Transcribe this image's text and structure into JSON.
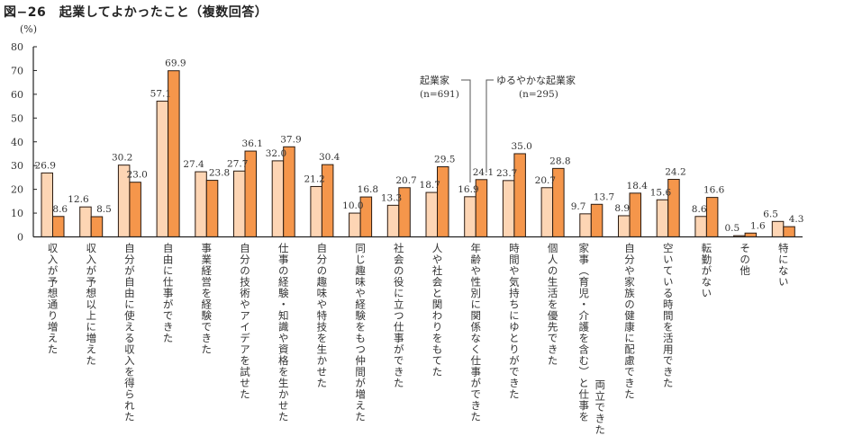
{
  "chart_data": {
    "type": "bar",
    "title": "図−26　起業してよかったこと（複数回答）",
    "ylabel": "(%)",
    "xlabel": "",
    "ylim": [
      0,
      80
    ],
    "yticks": [
      "0",
      "10",
      "20",
      "30",
      "40",
      "50",
      "60",
      "70",
      "80"
    ],
    "grid": false,
    "categories": [
      "収入が予想通り増えた",
      "収入が予想以上に増えた",
      "自分が自由に使える収入を得られた",
      "自由に仕事ができた",
      "事業経営を経験できた",
      "自分の技術やアイデアを試せた",
      "仕事の経験・知識や資格を生かせた",
      "自分の趣味や特技を生かせた",
      "同じ趣味や経験をもつ仲間が増えた",
      "社会の役に立つ仕事ができた",
      "人や社会と関わりをもてた",
      "年齢や性別に関係なく仕事ができた",
      "時間や気持ちにゆとりができた",
      "個人の生活を優先できた",
      "家事（育児・介護を含む）と仕事を両立できた",
      "自分や家族の健康に配慮できた",
      "空いている時間を活用できた",
      "転勤がない",
      "その他",
      "特にない"
    ],
    "category_lines": [
      [
        "収入が予想通り増えた"
      ],
      [
        "収入が予想以上に増えた"
      ],
      [
        "自分が自由に使える収入を得られた"
      ],
      [
        "自由に仕事ができた"
      ],
      [
        "事業経営を経験できた"
      ],
      [
        "自分の技術やアイデアを試せた"
      ],
      [
        "仕事の経験・知識や資格を生かせた"
      ],
      [
        "自分の趣味や特技を生かせた"
      ],
      [
        "同じ趣味や経験をもつ仲間が増えた"
      ],
      [
        "社会の役に立つ仕事ができた"
      ],
      [
        "人や社会と関わりをもてた"
      ],
      [
        "年齢や性別に関係なく仕事ができた"
      ],
      [
        "時間や気持ちにゆとりができた"
      ],
      [
        "個人の生活を優先できた"
      ],
      [
        "家事（育児・介護を含む）と仕事を",
        "両立できた"
      ],
      [
        "自分や家族の健康に配慮できた"
      ],
      [
        "空いている時間を活用できた"
      ],
      [
        "転勤がない"
      ],
      [
        "その他"
      ],
      [
        "特にない"
      ]
    ],
    "series": [
      {
        "name": "起業家",
        "n_label": "(n=691)",
        "color": "#FDD5B4",
        "values": [
          26.9,
          12.6,
          30.2,
          57.1,
          27.4,
          27.7,
          32.0,
          21.2,
          10.0,
          13.3,
          18.7,
          16.9,
          23.7,
          20.7,
          9.7,
          8.9,
          15.6,
          8.6,
          0.5,
          6.5
        ],
        "labels": [
          "26.9",
          "12.6",
          "30.2",
          "57.1",
          "27.4",
          "27.7",
          "32.0",
          "21.2",
          "10.0",
          "13.3",
          "18.7",
          "16.9",
          "23.7",
          "20.7",
          "9.7",
          "8.9",
          "15.6",
          "8.6",
          "0.5",
          "6.5"
        ]
      },
      {
        "name": "ゆるやかな起業家",
        "n_label": "(n=295)",
        "color": "#F5964B",
        "values": [
          8.6,
          8.5,
          23.0,
          69.9,
          23.8,
          36.1,
          37.9,
          30.4,
          16.8,
          20.7,
          29.5,
          24.1,
          35.0,
          28.8,
          13.7,
          18.4,
          24.2,
          16.6,
          1.6,
          4.3
        ],
        "labels": [
          "8.6",
          "8.5",
          "23.0",
          "69.9",
          "23.8",
          "36.1",
          "37.9",
          "30.4",
          "16.8",
          "20.7",
          "29.5",
          "24.1",
          "35.0",
          "28.8",
          "13.7",
          "18.4",
          "24.2",
          "16.6",
          "1.6",
          "4.3"
        ]
      }
    ],
    "legend": "annotation-top-center"
  }
}
